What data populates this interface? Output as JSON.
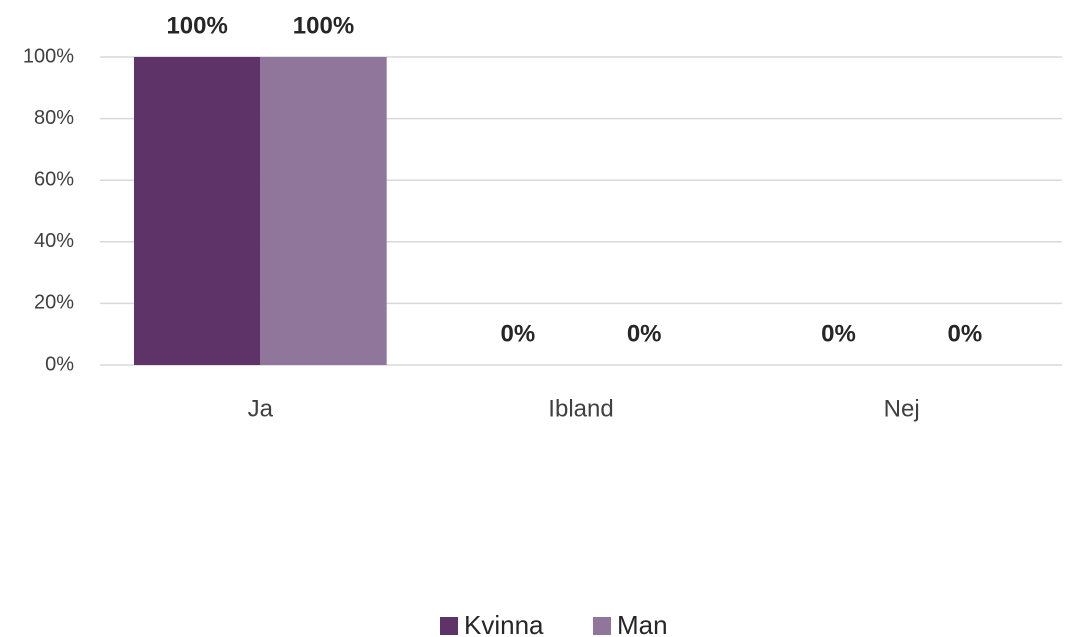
{
  "chart_data": {
    "type": "bar",
    "categories": [
      "Ja",
      "Ibland",
      "Nej"
    ],
    "series": [
      {
        "name": "Kvinna",
        "color": "#5e3468",
        "values": [
          100,
          0,
          0
        ],
        "value_labels": [
          "100%",
          "0%",
          "0%"
        ]
      },
      {
        "name": "Man",
        "color": "#91769b",
        "values": [
          100,
          0,
          0
        ],
        "value_labels": [
          "100%",
          "0%",
          "0%"
        ]
      }
    ],
    "ylim": [
      0,
      100
    ],
    "yticks": [
      {
        "value": 0,
        "label": "0%"
      },
      {
        "value": 20,
        "label": "20%"
      },
      {
        "value": 40,
        "label": "40%"
      },
      {
        "value": 60,
        "label": "60%"
      },
      {
        "value": 80,
        "label": "80%"
      },
      {
        "value": 100,
        "label": "100%"
      }
    ],
    "grid": true,
    "legend": "bottom"
  }
}
